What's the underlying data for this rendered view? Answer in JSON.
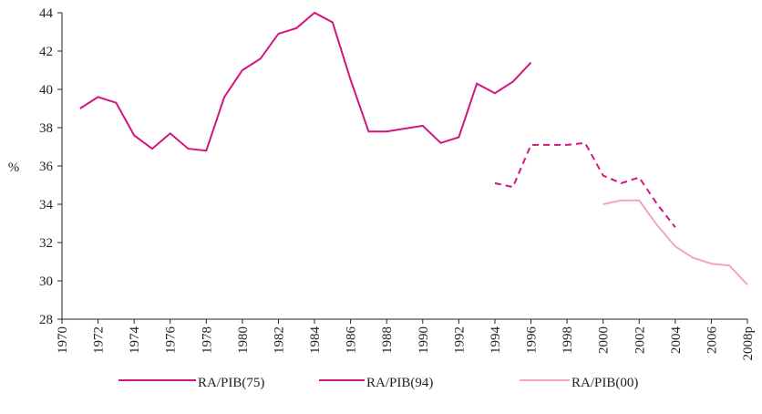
{
  "chart_data": {
    "type": "line",
    "y_label": "%",
    "x": [
      1971,
      1972,
      1973,
      1974,
      1975,
      1976,
      1977,
      1978,
      1979,
      1980,
      1981,
      1982,
      1983,
      1984,
      1985,
      1986,
      1987,
      1988,
      1989,
      1990,
      1991,
      1992,
      1993,
      1994,
      1995,
      1996,
      1997,
      1998,
      1999,
      2000,
      2001,
      2002,
      2003,
      2004,
      2005,
      2006,
      2007,
      2008
    ],
    "series": [
      {
        "name": "RA/PIB(75)",
        "color": "#d4147f",
        "style": "solid",
        "values": [
          39.0,
          39.6,
          39.3,
          37.6,
          36.9,
          37.7,
          36.9,
          36.8,
          39.6,
          41.0,
          41.6,
          42.9,
          43.2,
          44.0,
          43.5,
          40.5,
          37.8,
          37.8,
          37.95,
          38.1,
          37.2,
          37.5,
          40.3,
          39.8,
          40.4,
          41.4,
          null,
          null,
          null,
          null,
          null,
          null,
          null,
          null,
          null,
          null,
          null,
          null
        ]
      },
      {
        "name": "RA/PIB(94)",
        "color": "#d4147f",
        "style": "dashed",
        "values": [
          null,
          null,
          null,
          null,
          null,
          null,
          null,
          null,
          null,
          null,
          null,
          null,
          null,
          null,
          null,
          null,
          null,
          null,
          null,
          null,
          null,
          null,
          null,
          35.1,
          34.9,
          37.1,
          37.1,
          37.1,
          37.2,
          35.5,
          35.1,
          35.4,
          34.0,
          32.8,
          null,
          null,
          null,
          null
        ]
      },
      {
        "name": "RA/PIB(00)",
        "color": "#f2a3cb",
        "style": "solid",
        "values": [
          null,
          null,
          null,
          null,
          null,
          null,
          null,
          null,
          null,
          null,
          null,
          null,
          null,
          null,
          null,
          null,
          null,
          null,
          null,
          null,
          null,
          null,
          null,
          null,
          null,
          null,
          null,
          null,
          null,
          34.0,
          34.2,
          34.2,
          32.9,
          31.8,
          31.2,
          30.9,
          30.8,
          29.8
        ]
      }
    ],
    "xlim": [
      1970,
      2008
    ],
    "xticks": [
      1970,
      1972,
      1974,
      1976,
      1978,
      1980,
      1982,
      1984,
      1986,
      1988,
      1990,
      1992,
      1994,
      1996,
      1998,
      2000,
      2002,
      2004,
      2006,
      {
        "value": 2008,
        "label": "2008p"
      }
    ],
    "ylim": [
      28,
      44
    ],
    "yticks": [
      28,
      30,
      32,
      34,
      36,
      38,
      40,
      42,
      44
    ],
    "legend": "bottom"
  }
}
